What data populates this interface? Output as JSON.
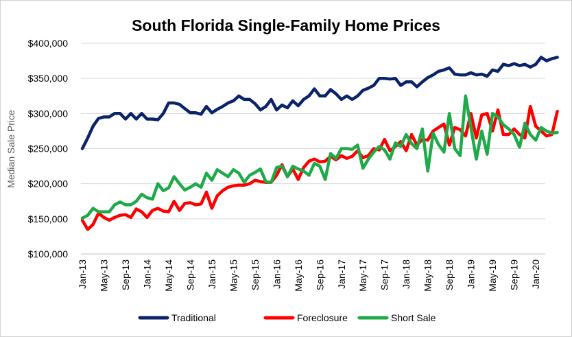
{
  "chart_data": {
    "type": "line",
    "title": "South Florida Single-Family Home Prices",
    "ylabel": "Median Sale Price",
    "xlabel": "",
    "ylim": [
      100000,
      400000
    ],
    "ytick_values": [
      100000,
      150000,
      200000,
      250000,
      300000,
      350000,
      400000
    ],
    "ytick_labels": [
      "$100,000",
      "$150,000",
      "$200,000",
      "$250,000",
      "$300,000",
      "$350,000",
      "$400,000"
    ],
    "xtick_labels": [
      "Jan-13",
      "May-13",
      "Sep-13",
      "Jan-14",
      "May-14",
      "Sep-14",
      "Jan-15",
      "May-15",
      "Sep-15",
      "Jan-16",
      "May-16",
      "Sep-16",
      "Jan-17",
      "May-17",
      "Sep-17",
      "Jan-18",
      "May-18",
      "Sep-18",
      "Jan-19",
      "May-19",
      "Sep-19",
      "Jan-20"
    ],
    "xtick_month_index": [
      0,
      4,
      8,
      12,
      16,
      20,
      24,
      28,
      32,
      36,
      40,
      44,
      48,
      52,
      56,
      60,
      64,
      68,
      72,
      76,
      80,
      84
    ],
    "grid": true,
    "legend_position": "bottom",
    "series": [
      {
        "name": "Traditional",
        "color": "#0b2369",
        "values": [
          250000,
          265000,
          282000,
          293000,
          295000,
          295000,
          300000,
          300000,
          292000,
          300000,
          292000,
          300000,
          292000,
          292000,
          291000,
          300000,
          315000,
          315000,
          313000,
          307000,
          301000,
          301000,
          299000,
          310000,
          301000,
          306000,
          310000,
          315000,
          318000,
          325000,
          320000,
          320000,
          314000,
          305000,
          310000,
          320000,
          305000,
          312000,
          308000,
          318000,
          311000,
          320000,
          325000,
          335000,
          325000,
          325000,
          334000,
          328000,
          320000,
          325000,
          320000,
          325000,
          333000,
          336000,
          340000,
          350000,
          350000,
          349000,
          350000,
          340000,
          345000,
          345000,
          338000,
          345000,
          351000,
          355000,
          360000,
          362000,
          365000,
          356000,
          355000,
          355000,
          358000,
          355000,
          356000,
          353000,
          362000,
          360000,
          370000,
          368000,
          371000,
          368000,
          370000,
          366000,
          370000,
          380000,
          375000,
          378000,
          380000
        ]
      },
      {
        "name": "Foreclosure",
        "color": "#ff0000",
        "values": [
          148000,
          135000,
          142000,
          158000,
          152000,
          148000,
          152000,
          155000,
          156000,
          152000,
          164000,
          160000,
          152000,
          162000,
          165000,
          161000,
          160000,
          175000,
          162000,
          172000,
          173000,
          170000,
          171000,
          188000,
          165000,
          183000,
          190000,
          195000,
          197000,
          198000,
          198000,
          200000,
          205000,
          203000,
          202000,
          202000,
          212000,
          227000,
          210000,
          221000,
          206000,
          223000,
          232000,
          235000,
          231000,
          232000,
          239000,
          234000,
          240000,
          236000,
          239000,
          247000,
          237000,
          240000,
          250000,
          248000,
          263000,
          247000,
          253000,
          260000,
          247000,
          270000,
          255000,
          263000,
          262000,
          275000,
          280000,
          285000,
          255000,
          280000,
          277000,
          268000,
          300000,
          265000,
          298000,
          300000,
          275000,
          305000,
          270000,
          270000,
          278000,
          270000,
          265000,
          310000,
          282000,
          275000,
          268000,
          270000,
          303000
        ]
      },
      {
        "name": "Short Sale",
        "color": "#1faa4a",
        "values": [
          151000,
          155000,
          165000,
          160000,
          160000,
          160000,
          170000,
          174000,
          170000,
          170000,
          175000,
          185000,
          180000,
          178000,
          200000,
          190000,
          194000,
          210000,
          200000,
          191000,
          195000,
          200000,
          195000,
          215000,
          205000,
          220000,
          215000,
          210000,
          220000,
          215000,
          202000,
          212000,
          216000,
          221000,
          203000,
          202000,
          223000,
          225000,
          210000,
          225000,
          221000,
          218000,
          212000,
          229000,
          225000,
          206000,
          243000,
          236000,
          250000,
          250000,
          249000,
          255000,
          222000,
          235000,
          245000,
          253000,
          248000,
          235000,
          258000,
          253000,
          270000,
          257000,
          250000,
          278000,
          218000,
          272000,
          256000,
          245000,
          300000,
          250000,
          240000,
          325000,
          280000,
          235000,
          275000,
          242000,
          300000,
          295000,
          284000,
          278000,
          270000,
          252000,
          286000,
          270000,
          262000,
          280000,
          275000,
          272000,
          273000
        ]
      }
    ]
  }
}
